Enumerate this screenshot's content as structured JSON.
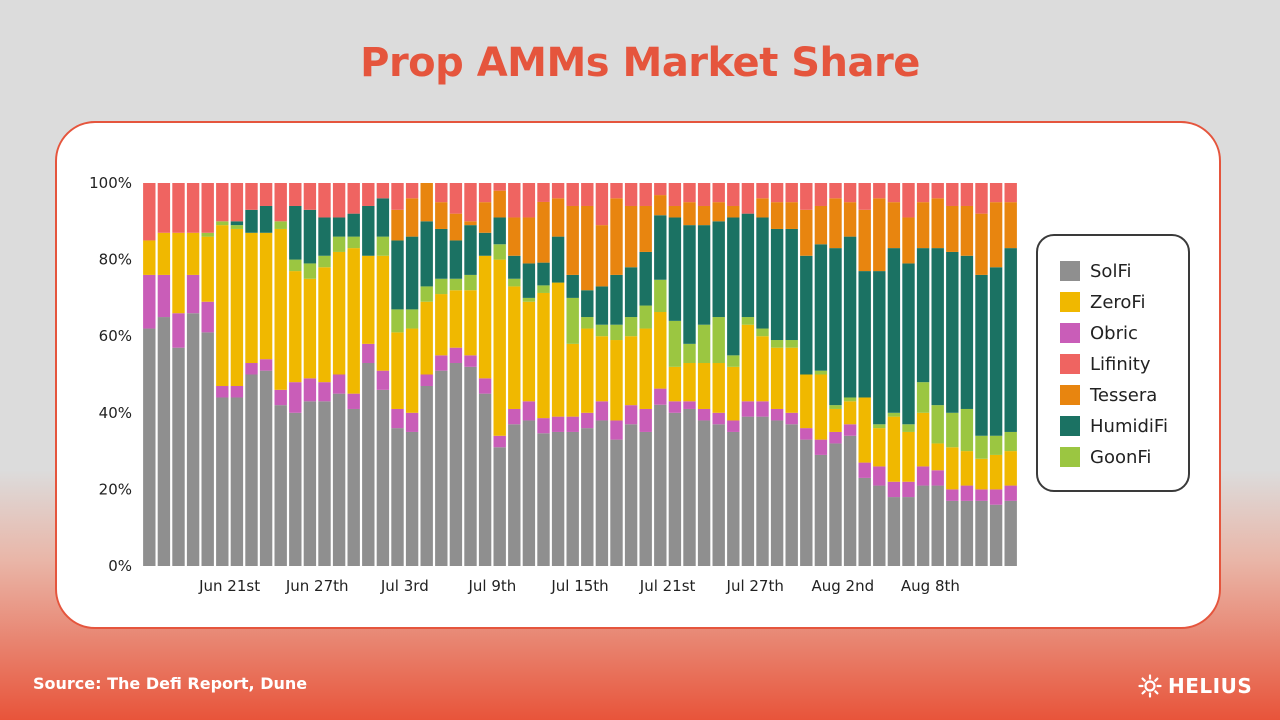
{
  "page": {
    "title": "Prop AMMs Market Share",
    "source": "Source: The Defi Report, Dune",
    "brand": "HELIUS"
  },
  "colors": {
    "SolFi": "#8f8f8f",
    "ZeroFi": "#f0b800",
    "Obric": "#c95db8",
    "Lifinity": "#ef6461",
    "Tessera": "#e8850f",
    "HumidiFi": "#1b7263",
    "GoonFi": "#9bc641"
  },
  "chart_data": {
    "type": "bar",
    "stacked": true,
    "ylim": [
      0,
      100
    ],
    "yticks": [
      "0%",
      "20%",
      "40%",
      "60%",
      "80%",
      "100%"
    ],
    "grid": false,
    "legend_position": "right",
    "x_tick_labels": [
      {
        "index": 5,
        "label": "Jun 21st"
      },
      {
        "index": 11,
        "label": "Jun 27th"
      },
      {
        "index": 17,
        "label": "Jul 3rd"
      },
      {
        "index": 23,
        "label": "Jul 9th"
      },
      {
        "index": 29,
        "label": "Jul 15th"
      },
      {
        "index": 35,
        "label": "Jul 21st"
      },
      {
        "index": 41,
        "label": "Jul 27th"
      },
      {
        "index": 47,
        "label": "Aug 2nd"
      },
      {
        "index": 53,
        "label": "Aug 8th"
      }
    ],
    "series": [
      {
        "name": "SolFi",
        "values": [
          62,
          65,
          57,
          66,
          61,
          44,
          44,
          50,
          51,
          42,
          40,
          43,
          43,
          45,
          41,
          53,
          46,
          36,
          35,
          47,
          51,
          53,
          52,
          45,
          31,
          37,
          38,
          35,
          35,
          35,
          36,
          38,
          33,
          37,
          35,
          40,
          40,
          41,
          38,
          37,
          35,
          39,
          39,
          38,
          37,
          33,
          29,
          32,
          34,
          23,
          21,
          18,
          18,
          21,
          21,
          17,
          17,
          17,
          16,
          17
        ]
      },
      {
        "name": "Obric",
        "values": [
          14,
          11,
          9,
          10,
          8,
          3,
          3,
          3,
          3,
          4,
          8,
          6,
          5,
          5,
          4,
          5,
          5,
          5,
          5,
          3,
          4,
          4,
          3,
          4,
          3,
          4,
          5,
          4,
          4,
          4,
          4,
          5,
          5,
          5,
          6,
          4,
          3,
          2,
          3,
          3,
          3,
          4,
          4,
          3,
          3,
          3,
          4,
          3,
          3,
          4,
          5,
          4,
          4,
          5,
          4,
          3,
          4,
          3,
          4,
          4
        ]
      },
      {
        "name": "ZeroFi",
        "values": [
          9,
          11,
          21,
          11,
          17,
          42,
          41,
          34,
          33,
          42,
          29,
          26,
          30,
          32,
          38,
          23,
          30,
          20,
          22,
          19,
          16,
          15,
          17,
          32,
          46,
          32,
          26,
          33,
          35,
          19,
          22,
          17,
          21,
          18,
          21,
          19,
          9,
          10,
          12,
          13,
          14,
          20,
          17,
          16,
          17,
          14,
          17,
          6,
          6,
          17,
          10,
          17,
          13,
          14,
          7,
          11,
          9,
          8,
          9,
          9
        ]
      },
      {
        "name": "GoonFi",
        "values": [
          0,
          0,
          0,
          0,
          1,
          1,
          1,
          0,
          0,
          2,
          3,
          4,
          3,
          4,
          3,
          0,
          5,
          6,
          5,
          4,
          4,
          3,
          4,
          0,
          4,
          2,
          1,
          2,
          0,
          12,
          3,
          3,
          4,
          5,
          6,
          8,
          12,
          5,
          10,
          12,
          3,
          2,
          2,
          2,
          2,
          0,
          1,
          1,
          1,
          0,
          1,
          1,
          2,
          8,
          10,
          9,
          11,
          6,
          5,
          5
        ]
      },
      {
        "name": "HumidiFi",
        "values": [
          0,
          0,
          0,
          0,
          0,
          0,
          1,
          6,
          7,
          0,
          14,
          14,
          10,
          5,
          6,
          13,
          10,
          18,
          19,
          17,
          13,
          10,
          13,
          6,
          7,
          6,
          9,
          6,
          12,
          6,
          7,
          10,
          13,
          13,
          14,
          16,
          27,
          31,
          26,
          25,
          36,
          27,
          29,
          29,
          29,
          31,
          33,
          41,
          42,
          33,
          40,
          43,
          42,
          35,
          41,
          42,
          40,
          42,
          44,
          48
        ]
      },
      {
        "name": "Tessera",
        "values": [
          0,
          0,
          0,
          0,
          0,
          0,
          0,
          0,
          0,
          0,
          0,
          0,
          0,
          0,
          0,
          0,
          0,
          8,
          10,
          10,
          7,
          7,
          1,
          8,
          7,
          10,
          12,
          16,
          10,
          18,
          22,
          16,
          20,
          16,
          12,
          5,
          3,
          6,
          5,
          5,
          3,
          0,
          5,
          7,
          7,
          12,
          10,
          13,
          9,
          16,
          19,
          12,
          12,
          12,
          13,
          12,
          13,
          16,
          17,
          12
        ]
      },
      {
        "name": "Lifinity",
        "values": [
          15,
          13,
          13,
          13,
          13,
          10,
          10,
          7,
          6,
          10,
          6,
          7,
          9,
          9,
          8,
          6,
          4,
          7,
          4,
          0,
          5,
          8,
          10,
          5,
          2,
          9,
          9,
          5,
          4,
          6,
          6,
          11,
          4,
          6,
          6,
          3,
          6,
          5,
          6,
          5,
          6,
          8,
          4,
          5,
          5,
          7,
          6,
          4,
          5,
          7,
          4,
          5,
          9,
          5,
          4,
          6,
          6,
          8,
          5,
          5
        ]
      }
    ]
  }
}
